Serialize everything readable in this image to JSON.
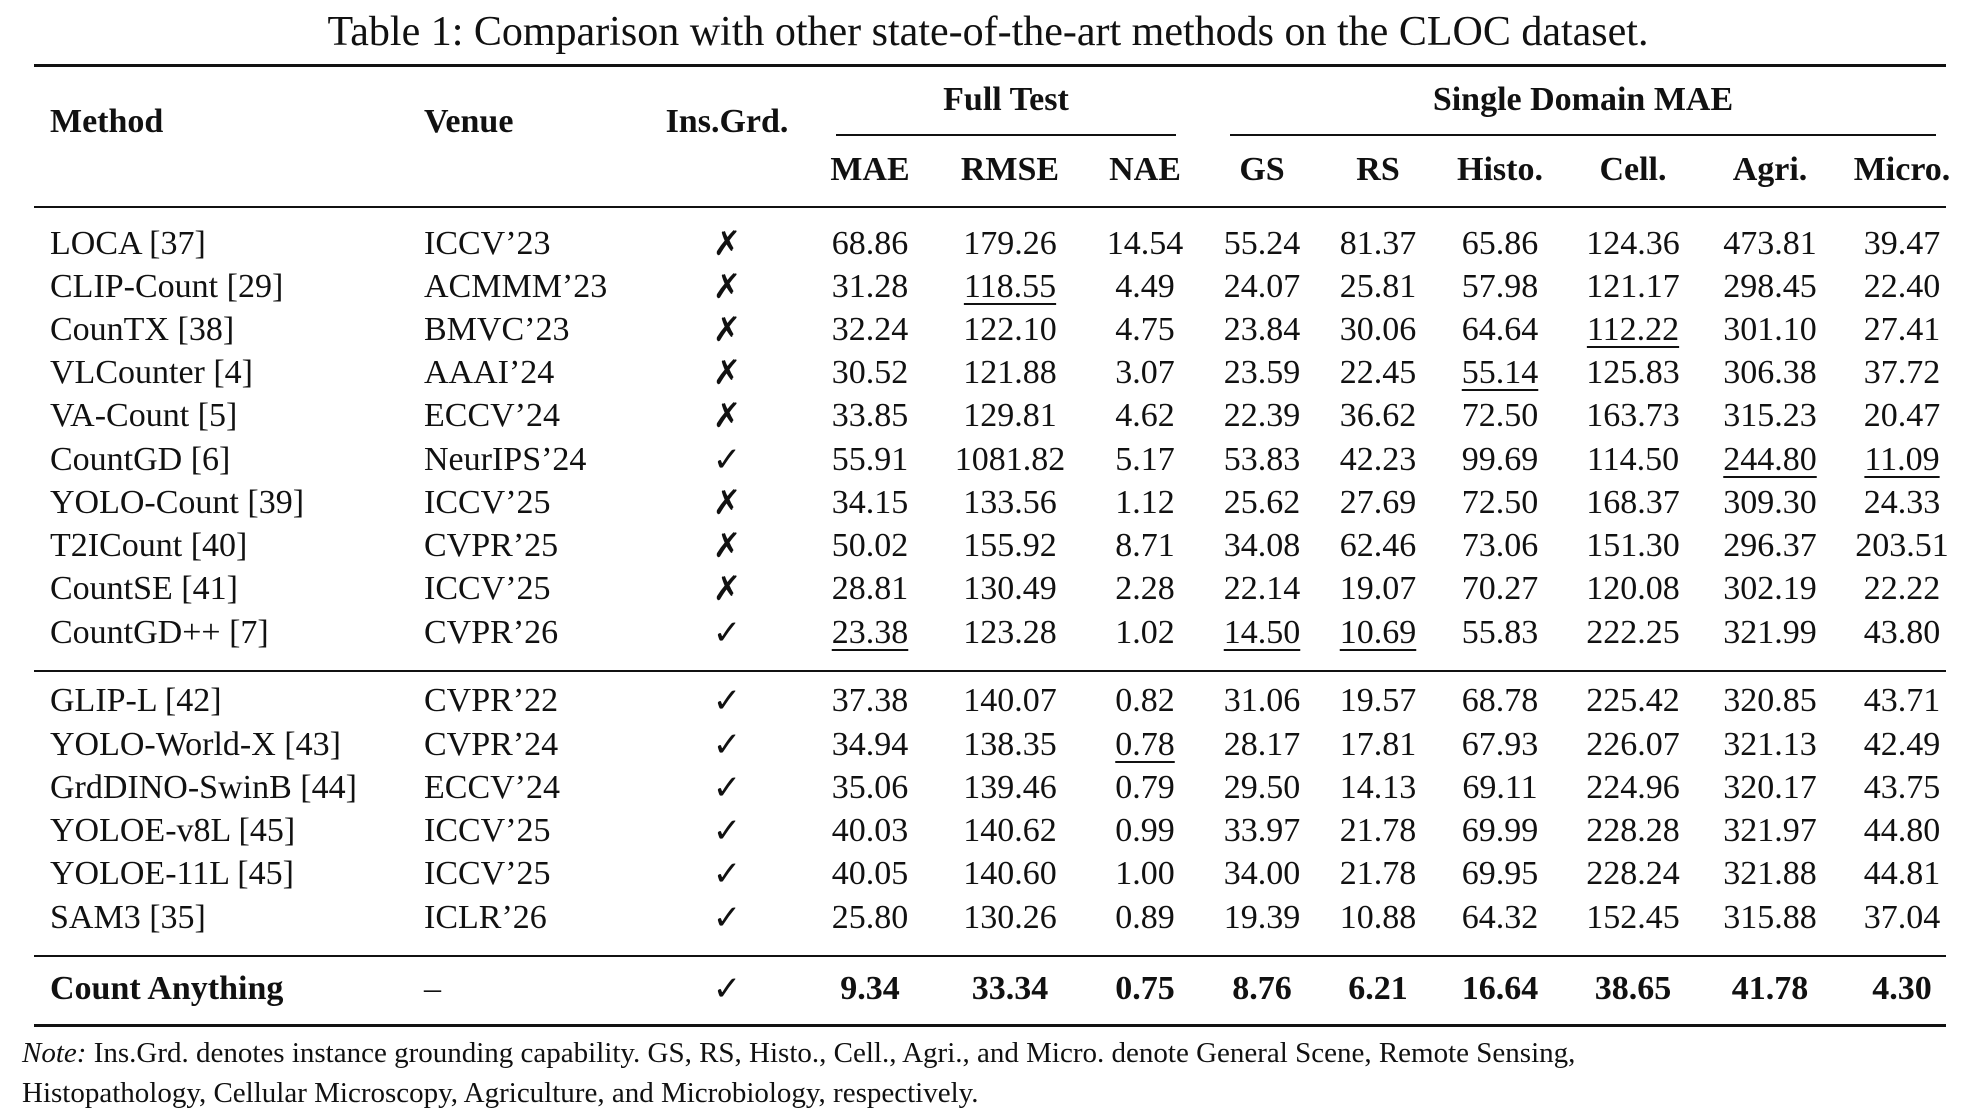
{
  "caption": "Table 1: Comparison with other state-of-the-art methods on the CLOC dataset.",
  "headers": {
    "method": "Method",
    "venue": "Venue",
    "insgrd": "Ins.Grd.",
    "group_full": "Full Test",
    "group_single": "Single Domain MAE",
    "metrics": [
      "MAE",
      "RMSE",
      "NAE",
      "GS",
      "RS",
      "Histo.",
      "Cell.",
      "Agri.",
      "Micro."
    ]
  },
  "marks": {
    "yes": "✓",
    "no": "✗"
  },
  "groups": [
    [
      {
        "method": "LOCA [37]",
        "venue": "ICCV’23",
        "grd": false,
        "v": [
          "68.86",
          "179.26",
          "14.54",
          "55.24",
          "81.37",
          "65.86",
          "124.36",
          "473.81",
          "39.47"
        ],
        "u": []
      },
      {
        "method": "CLIP-Count [29]",
        "venue": "ACMMM’23",
        "grd": false,
        "v": [
          "31.28",
          "118.55",
          "4.49",
          "24.07",
          "25.81",
          "57.98",
          "121.17",
          "298.45",
          "22.40"
        ],
        "u": [
          1
        ]
      },
      {
        "method": "CounTX [38]",
        "venue": "BMVC’23",
        "grd": false,
        "v": [
          "32.24",
          "122.10",
          "4.75",
          "23.84",
          "30.06",
          "64.64",
          "112.22",
          "301.10",
          "27.41"
        ],
        "u": [
          6
        ]
      },
      {
        "method": "VLCounter [4]",
        "venue": "AAAI’24",
        "grd": false,
        "v": [
          "30.52",
          "121.88",
          "3.07",
          "23.59",
          "22.45",
          "55.14",
          "125.83",
          "306.38",
          "37.72"
        ],
        "u": [
          5
        ]
      },
      {
        "method": "VA-Count [5]",
        "venue": "ECCV’24",
        "grd": false,
        "v": [
          "33.85",
          "129.81",
          "4.62",
          "22.39",
          "36.62",
          "72.50",
          "163.73",
          "315.23",
          "20.47"
        ],
        "u": []
      },
      {
        "method": "CountGD [6]",
        "venue": "NeurIPS’24",
        "grd": true,
        "v": [
          "55.91",
          "1081.82",
          "5.17",
          "53.83",
          "42.23",
          "99.69",
          "114.50",
          "244.80",
          "11.09"
        ],
        "u": [
          7,
          8
        ]
      },
      {
        "method": "YOLO-Count [39]",
        "venue": "ICCV’25",
        "grd": false,
        "v": [
          "34.15",
          "133.56",
          "1.12",
          "25.62",
          "27.69",
          "72.50",
          "168.37",
          "309.30",
          "24.33"
        ],
        "u": []
      },
      {
        "method": "T2ICount [40]",
        "venue": "CVPR’25",
        "grd": false,
        "v": [
          "50.02",
          "155.92",
          "8.71",
          "34.08",
          "62.46",
          "73.06",
          "151.30",
          "296.37",
          "203.51"
        ],
        "u": []
      },
      {
        "method": "CountSE [41]",
        "venue": "ICCV’25",
        "grd": false,
        "v": [
          "28.81",
          "130.49",
          "2.28",
          "22.14",
          "19.07",
          "70.27",
          "120.08",
          "302.19",
          "22.22"
        ],
        "u": []
      },
      {
        "method": "CountGD++ [7]",
        "venue": "CVPR’26",
        "grd": true,
        "v": [
          "23.38",
          "123.28",
          "1.02",
          "14.50",
          "10.69",
          "55.83",
          "222.25",
          "321.99",
          "43.80"
        ],
        "u": [
          0,
          3,
          4
        ]
      }
    ],
    [
      {
        "method": "GLIP-L [42]",
        "venue": "CVPR’22",
        "grd": true,
        "v": [
          "37.38",
          "140.07",
          "0.82",
          "31.06",
          "19.57",
          "68.78",
          "225.42",
          "320.85",
          "43.71"
        ],
        "u": []
      },
      {
        "method": "YOLO-World-X [43]",
        "venue": "CVPR’24",
        "grd": true,
        "v": [
          "34.94",
          "138.35",
          "0.78",
          "28.17",
          "17.81",
          "67.93",
          "226.07",
          "321.13",
          "42.49"
        ],
        "u": [
          2
        ]
      },
      {
        "method": "GrdDINO-SwinB [44]",
        "venue": "ECCV’24",
        "grd": true,
        "v": [
          "35.06",
          "139.46",
          "0.79",
          "29.50",
          "14.13",
          "69.11",
          "224.96",
          "320.17",
          "43.75"
        ],
        "u": []
      },
      {
        "method": "YOLOE-v8L [45]",
        "venue": "ICCV’25",
        "grd": true,
        "v": [
          "40.03",
          "140.62",
          "0.99",
          "33.97",
          "21.78",
          "69.99",
          "228.28",
          "321.97",
          "44.80"
        ],
        "u": []
      },
      {
        "method": "YOLOE-11L [45]",
        "venue": "ICCV’25",
        "grd": true,
        "v": [
          "40.05",
          "140.60",
          "1.00",
          "34.00",
          "21.78",
          "69.95",
          "228.24",
          "321.88",
          "44.81"
        ],
        "u": []
      },
      {
        "method": "SAM3 [35]",
        "venue": "ICLR’26",
        "grd": true,
        "v": [
          "25.80",
          "130.26",
          "0.89",
          "19.39",
          "10.88",
          "64.32",
          "152.45",
          "315.88",
          "37.04"
        ],
        "u": []
      }
    ],
    [
      {
        "method": "Count Anything",
        "venue": "–",
        "grd": true,
        "v": [
          "9.34",
          "33.34",
          "0.75",
          "8.76",
          "6.21",
          "16.64",
          "38.65",
          "41.78",
          "4.30"
        ],
        "u": [],
        "bold": true
      }
    ]
  ],
  "note": {
    "label": "Note:",
    "line1": " Ins.Grd. denotes instance grounding capability. GS, RS, Histo., Cell., Agri., and Micro. denote General Scene, Remote Sensing,",
    "line2": "Histopathology, Cellular Microscopy, Agriculture, and Microbiology, respectively."
  }
}
